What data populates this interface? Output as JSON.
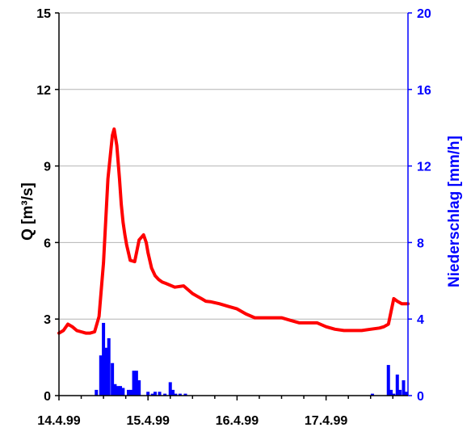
{
  "chart_data": {
    "type": "bar+line",
    "title": "",
    "x_ticks": [
      "14.4.99",
      "15.4.99",
      "16.4.99",
      "17.4.99"
    ],
    "ylabel_left": "Q [m³/s]",
    "ylabel_right": "Niederschlag [mm/h]",
    "ylim_left": [
      0,
      15
    ],
    "yticks_left": [
      0,
      3,
      6,
      9,
      12,
      15
    ],
    "ylim_right": [
      0,
      20
    ],
    "yticks_right": [
      0,
      4,
      8,
      12,
      16,
      20
    ],
    "xlim_days": [
      0,
      3.92
    ],
    "grid": "horizontal",
    "colors": {
      "discharge": "#ff0000",
      "precipitation": "#0000ff",
      "axis_right": "#0000ff",
      "axis_left": "#000000"
    },
    "series": [
      {
        "type": "line",
        "axis": "left",
        "x_days": [
          0,
          0.05,
          0.1,
          0.15,
          0.2,
          0.25,
          0.3,
          0.35,
          0.4,
          0.45,
          0.5,
          0.55,
          0.6,
          0.62,
          0.65,
          0.68,
          0.7,
          0.72,
          0.74,
          0.76,
          0.78,
          0.8,
          0.85,
          0.9,
          0.95,
          0.98,
          1.0,
          1.04,
          1.08,
          1.12,
          1.16,
          1.2,
          1.3,
          1.4,
          1.5,
          1.55,
          1.6,
          1.65,
          1.7,
          1.8,
          1.9,
          2.0,
          2.1,
          2.2,
          2.3,
          2.4,
          2.5,
          2.6,
          2.7,
          2.8,
          2.9,
          3.0,
          3.1,
          3.2,
          3.3,
          3.4,
          3.5,
          3.6,
          3.65,
          3.7,
          3.73,
          3.76,
          3.8,
          3.85,
          3.92
        ],
        "y": [
          2.45,
          2.55,
          2.8,
          2.7,
          2.55,
          2.5,
          2.45,
          2.45,
          2.5,
          3.1,
          5.2,
          8.5,
          10.2,
          10.45,
          9.8,
          8.5,
          7.5,
          6.8,
          6.3,
          5.9,
          5.6,
          5.3,
          5.25,
          6.1,
          6.3,
          6.0,
          5.6,
          5.0,
          4.7,
          4.55,
          4.45,
          4.4,
          4.25,
          4.3,
          4.0,
          3.9,
          3.8,
          3.7,
          3.68,
          3.6,
          3.5,
          3.4,
          3.2,
          3.05,
          3.05,
          3.05,
          3.05,
          2.95,
          2.85,
          2.85,
          2.85,
          2.7,
          2.6,
          2.55,
          2.55,
          2.55,
          2.6,
          2.65,
          2.7,
          2.8,
          3.3,
          3.8,
          3.7,
          3.6,
          3.6
        ]
      },
      {
        "type": "bar",
        "axis": "right",
        "x_days": [
          0.42,
          0.47,
          0.5,
          0.53,
          0.56,
          0.6,
          0.63,
          0.66,
          0.69,
          0.72,
          0.78,
          0.81,
          0.84,
          0.87,
          0.9,
          1.0,
          1.05,
          1.08,
          1.13,
          1.19,
          1.25,
          1.28,
          1.31,
          1.36,
          1.42,
          3.52,
          3.7,
          3.73,
          3.76,
          3.8,
          3.83,
          3.87,
          3.9
        ],
        "values": [
          0.3,
          2.1,
          3.8,
          2.5,
          3.0,
          1.7,
          0.6,
          0.5,
          0.5,
          0.4,
          0.3,
          0.3,
          1.3,
          1.3,
          0.8,
          0.2,
          0.1,
          0.2,
          0.2,
          0.1,
          0.7,
          0.3,
          0.1,
          0.1,
          0.1,
          0.1,
          1.6,
          0.3,
          0.1,
          1.1,
          0.3,
          0.8,
          0.2
        ]
      }
    ]
  }
}
